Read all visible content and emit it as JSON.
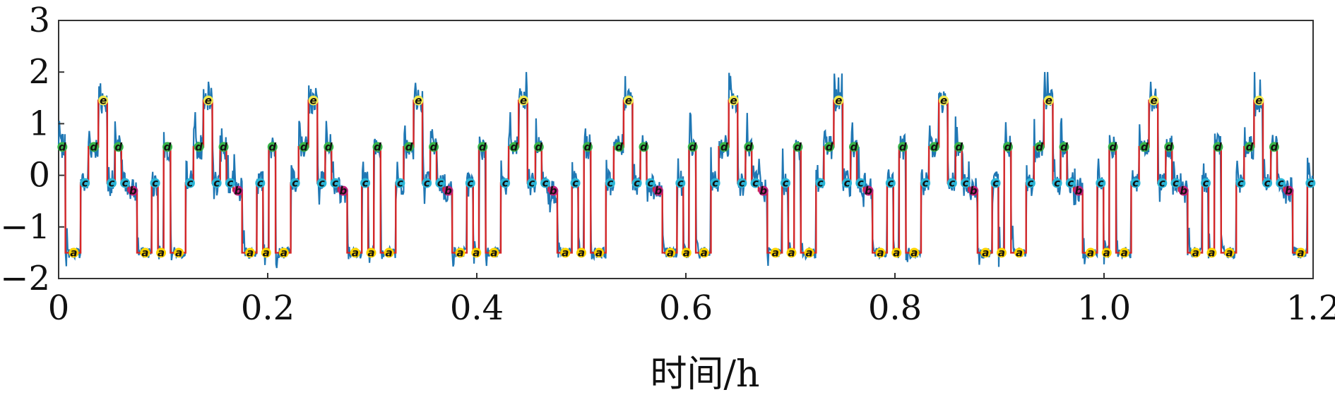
{
  "chart_data": {
    "type": "line",
    "title": "",
    "xlabel": "时间/h",
    "ylabel": "",
    "xlim": [
      0,
      1.2
    ],
    "ylim": [
      -2,
      3
    ],
    "x_ticks": [
      "0",
      "0.2",
      "0.4",
      "0.6",
      "0.8",
      "1.0",
      "1.2"
    ],
    "y_ticks": [
      "3",
      "2",
      "1",
      "0",
      "−1",
      "−2"
    ],
    "grid": false,
    "legend": "none",
    "state_levels": {
      "a": -1.5,
      "b": -0.3,
      "c": -0.15,
      "d": 0.55,
      "e": 1.45
    },
    "state_colors": {
      "a": "#ffd400",
      "b": "#c0207a",
      "c": "#2ab5d6",
      "d": "#38b449",
      "e": "#f2e94c"
    },
    "period_h": 0.1,
    "cycle": [
      {
        "state": "d",
        "dur": 0.0065
      },
      {
        "state": "a",
        "dur": 0.0145
      },
      {
        "state": "c",
        "dur": 0.0075
      },
      {
        "state": "d",
        "dur": 0.0095
      },
      {
        "state": "e",
        "dur": 0.0085
      },
      {
        "state": "c",
        "dur": 0.0075
      },
      {
        "state": "d",
        "dur": 0.006
      },
      {
        "state": "c",
        "dur": 0.0065
      },
      {
        "state": "b",
        "dur": 0.0085
      },
      {
        "state": "a",
        "dur": 0.014
      },
      {
        "state": "c",
        "dur": 0.006
      },
      {
        "state": "a",
        "dur": 0.0055
      }
    ],
    "series": [
      {
        "name": "",
        "color": "#1f77b4",
        "kind": "measured"
      },
      {
        "name": "",
        "color": "#d62728",
        "kind": "state-fit"
      }
    ],
    "frame_color": "#333333"
  }
}
